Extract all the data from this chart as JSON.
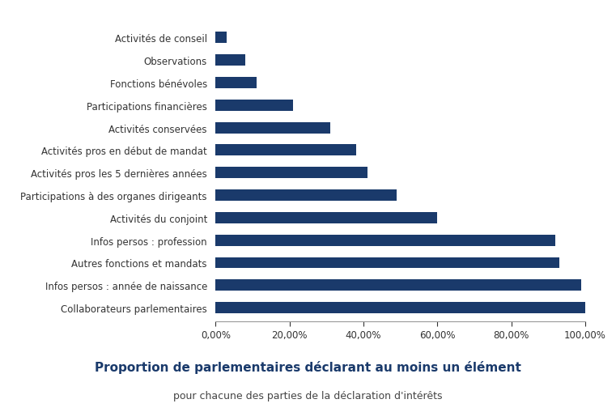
{
  "categories": [
    "Collaborateurs parlementaires",
    "Infos persos : année de naissance",
    "Autres fonctions et mandats",
    "Infos persos : profession",
    "Activités du conjoint",
    "Participations à des organes dirigeants",
    "Activités pros les 5 dernières années",
    "Activités pros en début de mandat",
    "Activités conservées",
    "Participations financières",
    "Fonctions bénévoles",
    "Observations",
    "Activités de conseil"
  ],
  "values": [
    1.0,
    0.99,
    0.93,
    0.92,
    0.6,
    0.49,
    0.41,
    0.38,
    0.31,
    0.21,
    0.11,
    0.08,
    0.03
  ],
  "bar_color": "#1a3a6b",
  "title_line1": "Proportion de parlementaires déclarant au moins un élément",
  "title_line2": "pour chacune des parties de la déclaration d'intérêts",
  "xlim": [
    0,
    1.0
  ],
  "xtick_values": [
    0.0,
    0.2,
    0.4,
    0.6,
    0.8,
    1.0
  ],
  "xtick_labels": [
    "0,00%",
    "20,00%",
    "40,00%",
    "60,00%",
    "80,00%",
    "100,00%"
  ],
  "background_color": "#ffffff",
  "label_color": "#333333",
  "label_fontsize": 8.5,
  "xtick_fontsize": 8.5,
  "title_fontsize": 11,
  "subtitle_fontsize": 9,
  "title_color": "#1a3a6b",
  "subtitle_color": "#444444",
  "bar_height": 0.5
}
